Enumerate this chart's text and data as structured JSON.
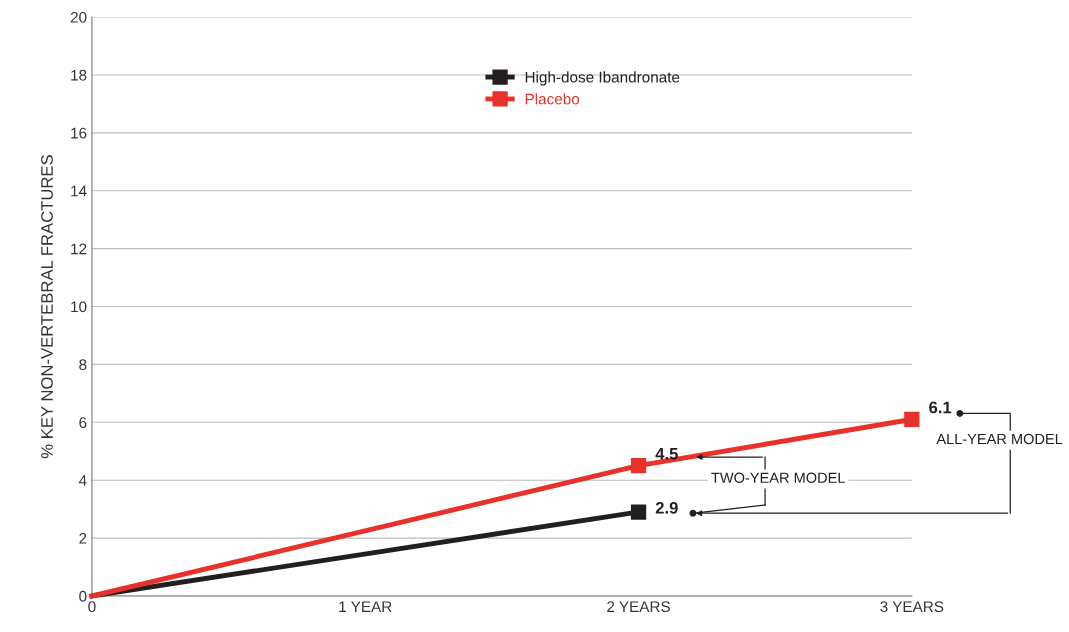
{
  "chart_data": {
    "type": "line",
    "ylabel": "% KEY NON-VERTEBRAL FRACTURES",
    "xlim": [
      0,
      3
    ],
    "ylim": [
      0,
      20
    ],
    "xticks": [
      0,
      {
        "value": 1,
        "label": "1 YEAR"
      },
      {
        "value": 2,
        "label": "2 YEARS"
      },
      {
        "value": 3,
        "label": "3 YEARS"
      }
    ],
    "yticks": [
      0,
      2,
      4,
      6,
      8,
      10,
      12,
      14,
      16,
      18,
      20
    ],
    "series": [
      {
        "name": "High-dose Ibandronate",
        "color": "#231f20",
        "x": [
          0,
          2
        ],
        "values": [
          0,
          2.9
        ],
        "value_labels": [
          null,
          "2.9"
        ]
      },
      {
        "name": "Placebo",
        "color": "#e8312a",
        "x": [
          0,
          2,
          3
        ],
        "values": [
          0,
          4.5,
          6.1
        ],
        "value_labels": [
          null,
          "4.5",
          "6.1"
        ]
      }
    ],
    "annotations": [
      {
        "text": "TWO-YEAR MODEL",
        "x": 2.2,
        "y": 4.8
      },
      {
        "text": "ALL-YEAR MODEL",
        "x": 3,
        "y": 6.1
      }
    ],
    "grid": "y",
    "legend": "top",
    "marker": "square",
    "line_style": "solid"
  }
}
